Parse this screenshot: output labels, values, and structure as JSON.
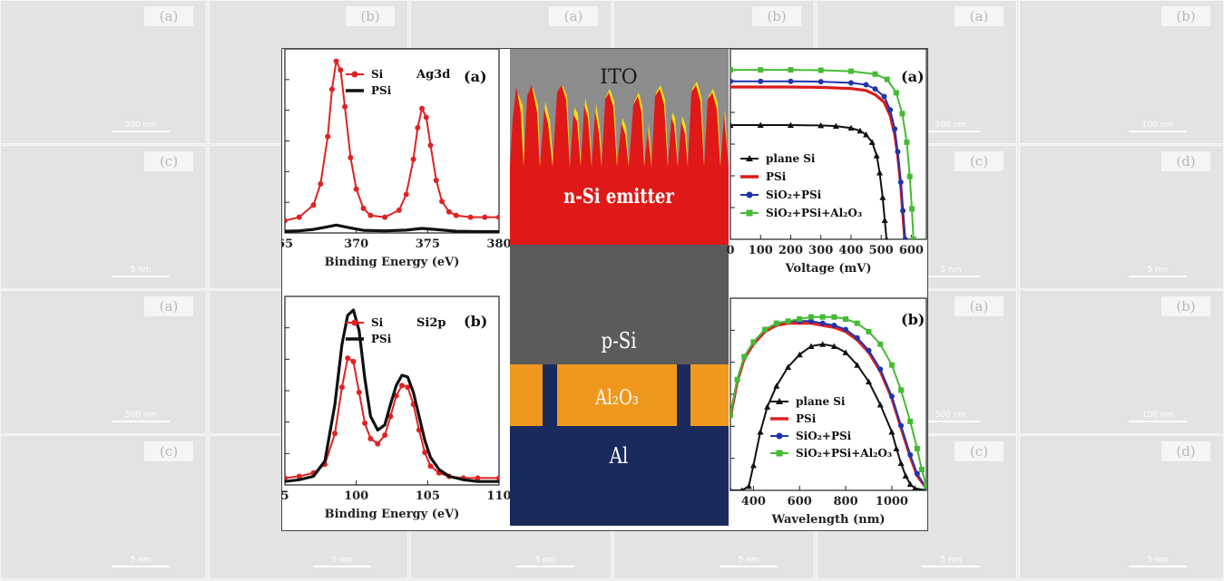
{
  "background": {
    "panel_labels": [
      "(a)",
      "(b)",
      "(a)",
      "(b)",
      "(a)",
      "(b)",
      "(c)",
      "(d)",
      "(c)",
      "(d)",
      "(c)",
      "(d)",
      "(a)",
      "(b)",
      "(a)",
      "(b)",
      "(a)",
      "(b)",
      "(c)",
      "(d)",
      "(c)",
      "(d)",
      "(c)",
      "(d)"
    ],
    "scale_labels": [
      "500 nm",
      "100 nm",
      "500 nm",
      "100 nm",
      "500 nm",
      "100 nm",
      "5 nm",
      "5 nm",
      "5 nm",
      "5 nm",
      "5 nm",
      "5 nm",
      "500 nm",
      "100 nm",
      "500 nm",
      "100 nm",
      "500 nm",
      "100 nm",
      "5 nm",
      "5 nm",
      "5 nm",
      "5 nm",
      "5 nm",
      "5 nm"
    ]
  },
  "chart_data": [
    {
      "id": "xps-ag3d",
      "type": "line",
      "panel_label": "(a)",
      "annotation": "Ag3d",
      "xlabel": "Binding Energy (eV)",
      "ylabel": "",
      "xlim": [
        365,
        380
      ],
      "xticks": [
        "65",
        "370",
        "375",
        "380"
      ],
      "legend": "top-left",
      "series": [
        {
          "name": "Si",
          "color": "#e02222",
          "marker": "circle",
          "x": [
            365,
            366,
            367,
            367.5,
            368,
            368.3,
            368.6,
            368.9,
            369.2,
            369.6,
            370,
            370.5,
            371,
            372,
            373,
            373.5,
            374,
            374.3,
            374.6,
            374.9,
            375.2,
            375.6,
            376,
            376.5,
            377,
            378,
            379,
            380
          ],
          "y": [
            0.07,
            0.09,
            0.16,
            0.28,
            0.55,
            0.82,
            0.98,
            0.93,
            0.72,
            0.43,
            0.25,
            0.14,
            0.1,
            0.09,
            0.13,
            0.22,
            0.42,
            0.6,
            0.71,
            0.66,
            0.5,
            0.3,
            0.18,
            0.12,
            0.1,
            0.09,
            0.09,
            0.09
          ]
        },
        {
          "name": "PSi",
          "color": "#111111",
          "marker": "none",
          "x": [
            365,
            366,
            367,
            368,
            368.6,
            369.5,
            370.5,
            372,
            373.5,
            374.6,
            375.5,
            377,
            378.5,
            380
          ],
          "y": [
            0.01,
            0.012,
            0.02,
            0.035,
            0.045,
            0.03,
            0.015,
            0.012,
            0.016,
            0.026,
            0.02,
            0.01,
            0.008,
            0.008
          ]
        }
      ]
    },
    {
      "id": "xps-si2p",
      "type": "line",
      "panel_label": "(b)",
      "annotation": "Si2p",
      "xlabel": "Binding Energy (eV)",
      "ylabel": "",
      "xlim": [
        95,
        110
      ],
      "xticks": [
        "5",
        "100",
        "105",
        "110"
      ],
      "legend": "top-left",
      "series": [
        {
          "name": "Si",
          "color": "#e02222",
          "marker": "circle",
          "x": [
            95,
            96,
            97,
            97.8,
            98.5,
            99,
            99.4,
            99.8,
            100.2,
            100.6,
            101,
            101.5,
            102,
            102.4,
            102.8,
            103.2,
            103.6,
            104,
            104.4,
            104.8,
            105.2,
            105.8,
            106.5,
            107.5,
            108.5,
            110
          ],
          "y": [
            0.02,
            0.03,
            0.05,
            0.1,
            0.28,
            0.55,
            0.72,
            0.7,
            0.52,
            0.34,
            0.25,
            0.22,
            0.27,
            0.38,
            0.5,
            0.56,
            0.55,
            0.45,
            0.3,
            0.17,
            0.09,
            0.05,
            0.03,
            0.02,
            0.02,
            0.02
          ]
        },
        {
          "name": "PSi",
          "color": "#111111",
          "marker": "none",
          "x": [
            95,
            96,
            97,
            97.8,
            98.5,
            99,
            99.4,
            99.8,
            100.2,
            100.6,
            101,
            101.5,
            102,
            102.4,
            102.8,
            103.2,
            103.6,
            104,
            104.4,
            104.8,
            105.2,
            105.8,
            106.5,
            107.5,
            108.5,
            110
          ],
          "y": [
            0.0,
            0.01,
            0.03,
            0.12,
            0.45,
            0.8,
            0.97,
            1.0,
            0.88,
            0.6,
            0.38,
            0.3,
            0.33,
            0.45,
            0.56,
            0.62,
            0.61,
            0.52,
            0.38,
            0.24,
            0.14,
            0.07,
            0.03,
            0.01,
            0.0,
            0.0
          ]
        }
      ]
    },
    {
      "id": "jv-curve",
      "type": "line",
      "panel_label": "(a)",
      "xlabel": "Voltage (mV)",
      "ylabel": "",
      "xlim": [
        0,
        650
      ],
      "xticks": [
        0,
        100,
        200,
        300,
        400,
        500,
        600
      ],
      "legend": "bottom-left",
      "series": [
        {
          "name": "plane Si",
          "color": "#111111",
          "marker": "triangle",
          "x": [
            0,
            100,
            200,
            300,
            350,
            400,
            430,
            450,
            470,
            485,
            495,
            505,
            512,
            518
          ],
          "y": [
            0.6,
            0.6,
            0.6,
            0.598,
            0.595,
            0.585,
            0.57,
            0.55,
            0.51,
            0.44,
            0.35,
            0.22,
            0.1,
            0.0
          ]
        },
        {
          "name": "PSi",
          "color": "#d91a1a",
          "marker": "none",
          "x": [
            0,
            100,
            200,
            300,
            400,
            450,
            480,
            510,
            530,
            545,
            555,
            565,
            572,
            578
          ],
          "y": [
            0.8,
            0.8,
            0.8,
            0.798,
            0.792,
            0.782,
            0.76,
            0.72,
            0.65,
            0.55,
            0.44,
            0.28,
            0.13,
            0.0
          ]
        },
        {
          "name": "SiO₂+PSi",
          "color": "#2233aa",
          "marker": "circle",
          "x": [
            0,
            100,
            200,
            300,
            400,
            450,
            480,
            510,
            530,
            545,
            555,
            565,
            572,
            580
          ],
          "y": [
            0.83,
            0.83,
            0.83,
            0.828,
            0.822,
            0.812,
            0.79,
            0.75,
            0.68,
            0.58,
            0.46,
            0.3,
            0.15,
            0.0
          ]
        },
        {
          "name": "SiO₂+PSi+Al₂O₃",
          "color": "#44bb33",
          "marker": "square",
          "x": [
            0,
            100,
            200,
            300,
            400,
            480,
            520,
            550,
            570,
            585,
            595,
            602,
            607
          ],
          "y": [
            0.89,
            0.89,
            0.89,
            0.888,
            0.883,
            0.868,
            0.84,
            0.77,
            0.66,
            0.51,
            0.33,
            0.16,
            0.0
          ]
        }
      ]
    },
    {
      "id": "eqe-curve",
      "type": "line",
      "panel_label": "(b)",
      "xlabel": "Wavelength (nm)",
      "ylabel": "",
      "xlim": [
        300,
        1150
      ],
      "xticks": [
        400,
        600,
        800,
        1000
      ],
      "legend": "bottom-left",
      "series": [
        {
          "name": "plane Si",
          "color": "#111111",
          "marker": "triangle",
          "x": [
            300,
            350,
            380,
            400,
            430,
            460,
            500,
            550,
            600,
            650,
            700,
            750,
            800,
            850,
            900,
            950,
            1000,
            1020,
            1040,
            1060,
            1080,
            1100,
            1150
          ],
          "y": [
            0.0,
            0.0,
            0.02,
            0.12,
            0.28,
            0.4,
            0.5,
            0.59,
            0.65,
            0.69,
            0.7,
            0.69,
            0.66,
            0.6,
            0.52,
            0.41,
            0.28,
            0.2,
            0.13,
            0.07,
            0.03,
            0.01,
            0.0
          ]
        },
        {
          "name": "PSi",
          "color": "#e02222",
          "marker": "none",
          "x": [
            300,
            330,
            360,
            400,
            450,
            500,
            550,
            600,
            650,
            700,
            750,
            800,
            850,
            900,
            950,
            1000,
            1040,
            1080,
            1110,
            1150
          ],
          "y": [
            0.35,
            0.52,
            0.63,
            0.7,
            0.76,
            0.79,
            0.8,
            0.8,
            0.8,
            0.79,
            0.78,
            0.76,
            0.72,
            0.66,
            0.57,
            0.44,
            0.3,
            0.16,
            0.07,
            0.01
          ]
        },
        {
          "name": "SiO₂+PSi",
          "color": "#2233aa",
          "marker": "circle",
          "x": [
            300,
            330,
            360,
            400,
            450,
            500,
            550,
            600,
            650,
            700,
            750,
            800,
            850,
            900,
            950,
            1000,
            1040,
            1080,
            1110,
            1150
          ],
          "y": [
            0.36,
            0.53,
            0.64,
            0.71,
            0.77,
            0.8,
            0.81,
            0.81,
            0.81,
            0.8,
            0.79,
            0.77,
            0.73,
            0.67,
            0.58,
            0.45,
            0.31,
            0.17,
            0.08,
            0.01
          ]
        },
        {
          "name": "SiO₂+PSi+Al₂O₃",
          "color": "#44bb33",
          "marker": "square",
          "x": [
            300,
            330,
            360,
            400,
            450,
            500,
            550,
            600,
            650,
            700,
            750,
            800,
            850,
            900,
            950,
            1000,
            1040,
            1080,
            1110,
            1130,
            1150
          ],
          "y": [
            0.36,
            0.53,
            0.64,
            0.71,
            0.77,
            0.8,
            0.81,
            0.82,
            0.83,
            0.83,
            0.83,
            0.82,
            0.8,
            0.76,
            0.7,
            0.6,
            0.48,
            0.33,
            0.2,
            0.1,
            0.02
          ]
        }
      ]
    }
  ],
  "device": {
    "layers": [
      {
        "name": "ito",
        "label": "ITO",
        "color": "#8c8c8c"
      },
      {
        "name": "emitter",
        "label": "n-Si emitter",
        "color": "#e01818"
      },
      {
        "name": "p-si",
        "label": "p-Si",
        "color": "#5b5b5b"
      },
      {
        "name": "al2o3",
        "label": "Al₂O₃",
        "color": "#f0981e"
      },
      {
        "name": "al",
        "label": "Al",
        "color": "#1a2a5c"
      }
    ],
    "texture_highlight_color": "#f4e21a"
  }
}
